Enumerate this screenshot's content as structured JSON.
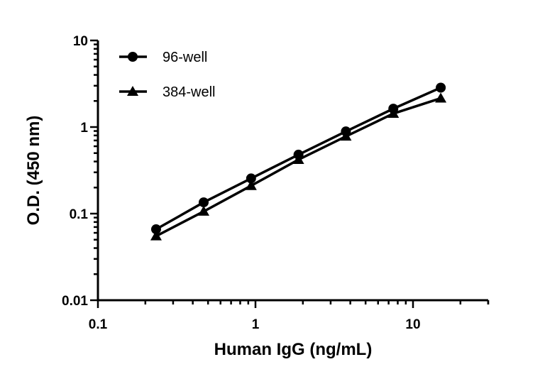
{
  "chart_data": {
    "type": "line",
    "title": "",
    "xlabel": "Human IgG (ng/mL)",
    "ylabel": "O.D. (450 nm)",
    "x_scale": "log",
    "y_scale": "log",
    "xlim": [
      0.1,
      30
    ],
    "ylim": [
      0.01,
      10
    ],
    "x_ticks": [
      "0.1",
      "1",
      "10"
    ],
    "y_ticks": [
      "0.01",
      "0.1",
      "1",
      "10"
    ],
    "grid": false,
    "legend_position": "top-left",
    "x": [
      0.234,
      0.469,
      0.938,
      1.875,
      3.75,
      7.5,
      15
    ],
    "series": [
      {
        "name": "96-well",
        "marker": "circle",
        "color": "#000000",
        "values": [
          0.066,
          0.135,
          0.255,
          0.48,
          0.89,
          1.63,
          2.85
        ]
      },
      {
        "name": "384-well",
        "marker": "triangle",
        "color": "#000000",
        "values": [
          0.055,
          0.106,
          0.21,
          0.42,
          0.78,
          1.43,
          2.15
        ]
      }
    ]
  }
}
